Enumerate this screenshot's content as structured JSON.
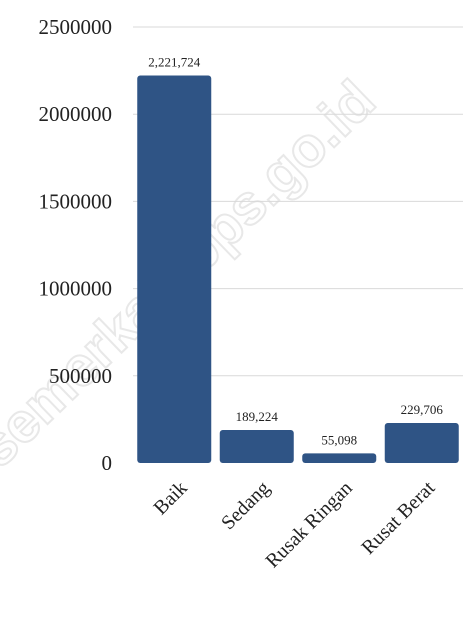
{
  "watermark": "semerkab.bps.go.id",
  "colors": {
    "bar": "#2f5485",
    "grid": "#d9d9d9",
    "text": "#222222"
  },
  "chart_data": {
    "type": "bar",
    "categories": [
      "Baik",
      "Sedang",
      "Rusak Ringan",
      "Rusat Berat"
    ],
    "values": [
      2221724,
      189224,
      55098,
      229706
    ],
    "data_labels": [
      "2,221,724",
      "189,224",
      "55,098",
      "229,706"
    ],
    "yticks": [
      "0",
      "500000",
      "1000000",
      "1500000",
      "2000000",
      "2500000"
    ],
    "ylim": [
      0,
      2500000
    ],
    "grid": true,
    "legend": "none"
  }
}
